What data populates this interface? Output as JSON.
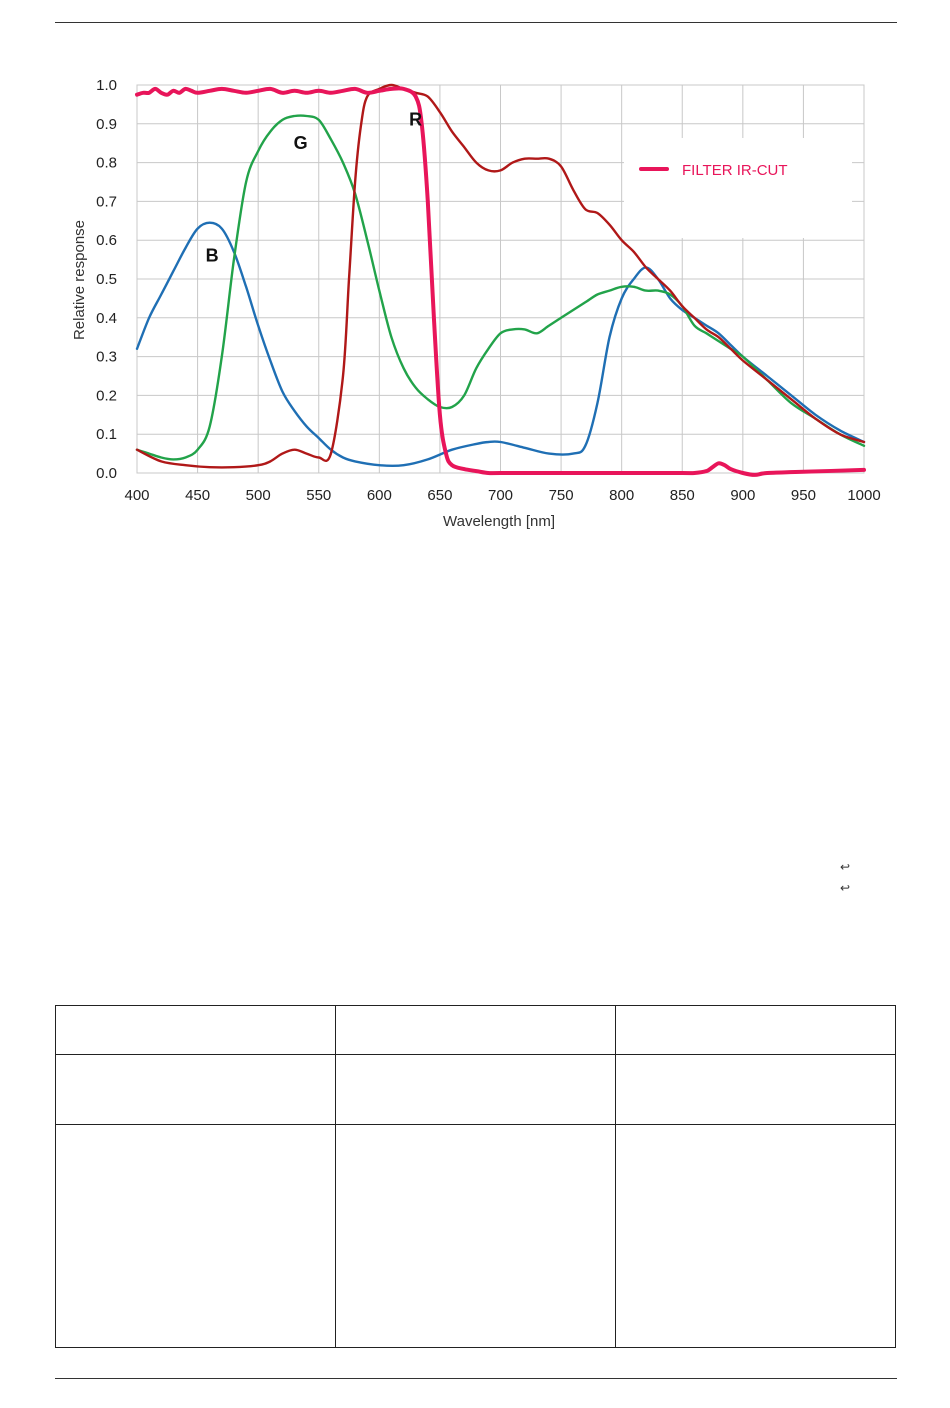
{
  "chart_data": {
    "type": "line",
    "title": "",
    "xlabel": "Wavelength [nm]",
    "ylabel": "Relative response",
    "xlim": [
      400,
      1000
    ],
    "ylim": [
      0.0,
      1.0
    ],
    "x_ticks": [
      "400",
      "450",
      "500",
      "550",
      "600",
      "650",
      "700",
      "750",
      "800",
      "850",
      "900",
      "950",
      "1000"
    ],
    "y_ticks": [
      "0.0",
      "0.1",
      "0.2",
      "0.3",
      "0.4",
      "0.5",
      "0.6",
      "0.7",
      "0.8",
      "0.9",
      "1.0"
    ],
    "grid": true,
    "legend": {
      "position": "top-right",
      "entries": [
        "FILTER IR-CUT"
      ]
    },
    "series": [
      {
        "name": "B",
        "color": "#1f6fb4",
        "x": [
          400,
          410,
          420,
          430,
          440,
          450,
          460,
          470,
          480,
          490,
          500,
          510,
          520,
          530,
          540,
          550,
          560,
          570,
          580,
          600,
          620,
          640,
          660,
          680,
          690,
          700,
          720,
          740,
          760,
          770,
          780,
          790,
          800,
          810,
          820,
          830,
          840,
          850,
          860,
          870,
          880,
          890,
          900,
          920,
          940,
          960,
          980,
          1000
        ],
        "y": [
          0.32,
          0.4,
          0.46,
          0.52,
          0.58,
          0.63,
          0.645,
          0.63,
          0.57,
          0.48,
          0.38,
          0.29,
          0.21,
          0.16,
          0.12,
          0.09,
          0.06,
          0.04,
          0.03,
          0.02,
          0.02,
          0.035,
          0.06,
          0.075,
          0.08,
          0.08,
          0.065,
          0.05,
          0.05,
          0.07,
          0.18,
          0.35,
          0.45,
          0.5,
          0.53,
          0.5,
          0.45,
          0.42,
          0.4,
          0.38,
          0.36,
          0.33,
          0.3,
          0.25,
          0.2,
          0.15,
          0.11,
          0.08
        ]
      },
      {
        "name": "G",
        "color": "#22a34a",
        "x": [
          400,
          410,
          420,
          430,
          440,
          450,
          460,
          470,
          480,
          490,
          500,
          510,
          520,
          530,
          540,
          550,
          560,
          570,
          580,
          590,
          600,
          610,
          620,
          630,
          640,
          650,
          660,
          670,
          680,
          690,
          700,
          710,
          720,
          730,
          740,
          750,
          760,
          770,
          780,
          790,
          800,
          810,
          820,
          830,
          840,
          850,
          860,
          870,
          880,
          890,
          900,
          920,
          940,
          960,
          980,
          1000
        ],
        "y": [
          0.06,
          0.05,
          0.04,
          0.035,
          0.04,
          0.06,
          0.12,
          0.3,
          0.55,
          0.75,
          0.83,
          0.88,
          0.91,
          0.92,
          0.92,
          0.91,
          0.86,
          0.8,
          0.72,
          0.6,
          0.47,
          0.35,
          0.27,
          0.22,
          0.19,
          0.17,
          0.17,
          0.2,
          0.27,
          0.32,
          0.36,
          0.37,
          0.37,
          0.36,
          0.38,
          0.4,
          0.42,
          0.44,
          0.46,
          0.47,
          0.48,
          0.48,
          0.47,
          0.47,
          0.46,
          0.43,
          0.38,
          0.36,
          0.34,
          0.32,
          0.3,
          0.24,
          0.18,
          0.14,
          0.1,
          0.07
        ]
      },
      {
        "name": "R",
        "color": "#b01818",
        "x": [
          400,
          420,
          440,
          460,
          480,
          500,
          510,
          520,
          530,
          540,
          550,
          560,
          570,
          575,
          580,
          585,
          590,
          600,
          610,
          620,
          630,
          640,
          650,
          660,
          670,
          680,
          690,
          700,
          710,
          720,
          730,
          740,
          750,
          760,
          770,
          780,
          790,
          800,
          810,
          820,
          830,
          840,
          850,
          860,
          870,
          880,
          890,
          900,
          920,
          940,
          960,
          980,
          1000
        ],
        "y": [
          0.06,
          0.03,
          0.02,
          0.015,
          0.015,
          0.02,
          0.03,
          0.05,
          0.06,
          0.05,
          0.04,
          0.05,
          0.25,
          0.5,
          0.75,
          0.9,
          0.97,
          0.99,
          1.0,
          0.99,
          0.98,
          0.97,
          0.93,
          0.88,
          0.84,
          0.8,
          0.78,
          0.78,
          0.8,
          0.81,
          0.81,
          0.81,
          0.79,
          0.73,
          0.68,
          0.67,
          0.64,
          0.6,
          0.57,
          0.53,
          0.5,
          0.47,
          0.43,
          0.4,
          0.37,
          0.35,
          0.32,
          0.29,
          0.24,
          0.19,
          0.14,
          0.1,
          0.08
        ]
      },
      {
        "name": "FILTER IR-CUT",
        "color": "#e8155a",
        "x": [
          400,
          405,
          410,
          415,
          420,
          425,
          430,
          435,
          440,
          445,
          450,
          460,
          470,
          480,
          490,
          500,
          510,
          520,
          530,
          540,
          550,
          560,
          570,
          580,
          590,
          600,
          610,
          620,
          630,
          635,
          640,
          645,
          650,
          655,
          660,
          670,
          680,
          690,
          700,
          750,
          800,
          850,
          860,
          870,
          875,
          880,
          885,
          890,
          900,
          910,
          920,
          950,
          1000
        ],
        "y": [
          0.975,
          0.98,
          0.98,
          0.99,
          0.98,
          0.975,
          0.985,
          0.98,
          0.99,
          0.985,
          0.98,
          0.985,
          0.99,
          0.985,
          0.98,
          0.985,
          0.99,
          0.98,
          0.985,
          0.98,
          0.985,
          0.98,
          0.985,
          0.99,
          0.98,
          0.985,
          0.99,
          0.99,
          0.97,
          0.9,
          0.7,
          0.4,
          0.15,
          0.05,
          0.02,
          0.01,
          0.005,
          0.0,
          0.0,
          0.0,
          0.0,
          0.0,
          0.0,
          0.005,
          0.015,
          0.025,
          0.02,
          0.01,
          0.0,
          -0.005,
          0.0,
          0.003,
          0.008
        ]
      }
    ],
    "annotations": [
      {
        "text": "B",
        "x": 462,
        "y": 0.545
      },
      {
        "text": "G",
        "x": 535,
        "y": 0.835
      },
      {
        "text": "R",
        "x": 630,
        "y": 0.895
      }
    ]
  },
  "arrows": [
    "↩",
    "↩"
  ]
}
